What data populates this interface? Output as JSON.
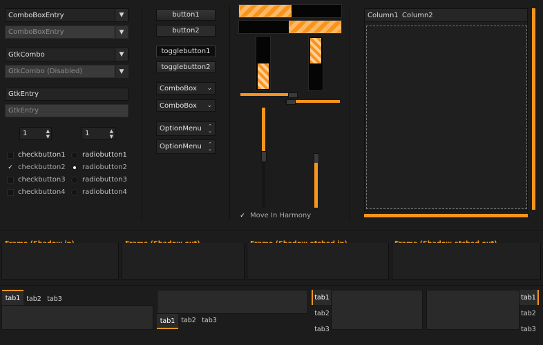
{
  "col1": {
    "combo_entry": "ComboBoxEntry",
    "combo_entry_disabled": "ComboBoxEntry",
    "gtk_combo": "GtkCombo",
    "gtk_combo_disabled": "GtkCombo (Disabled)",
    "entry": "GtkEntry",
    "entry_disabled": "GtkEntry",
    "spin1": "1",
    "spin2": "1",
    "checks": [
      "checkbutton1",
      "checkbutton2",
      "checkbutton3",
      "checkbutton4"
    ],
    "radios": [
      "radiobutton1",
      "radiobutton2",
      "radiobutton3",
      "radiobutton4"
    ]
  },
  "col2": {
    "button1": "button1",
    "button2": "button2",
    "toggle1": "togglebutton1",
    "toggle2": "togglebutton2",
    "combobox1": "ComboBox",
    "combobox2": "ComboBox",
    "option1": "OptionMenu",
    "option2": "OptionMenu"
  },
  "col3": {
    "harmony_label": "Move In Harmony",
    "progress": {
      "h1": 0.5,
      "h2": 0.5,
      "v1": 0.5,
      "v2": 0.5
    },
    "scales": {
      "h1": 0.5,
      "h2": 0.5,
      "v1": 0.5,
      "v2": 0.5
    }
  },
  "tree": {
    "columns": [
      "Column1",
      "Column2"
    ]
  },
  "frames": [
    "Frame (Shadow in)",
    "Frame (Shadow out)",
    "Frame (Shadow etched in)",
    "Frame (Shadow etched out)"
  ],
  "tabs": [
    "tab1",
    "tab2",
    "tab3"
  ],
  "colors": {
    "accent": "#f7941d",
    "bg": "#1c1c1c"
  }
}
